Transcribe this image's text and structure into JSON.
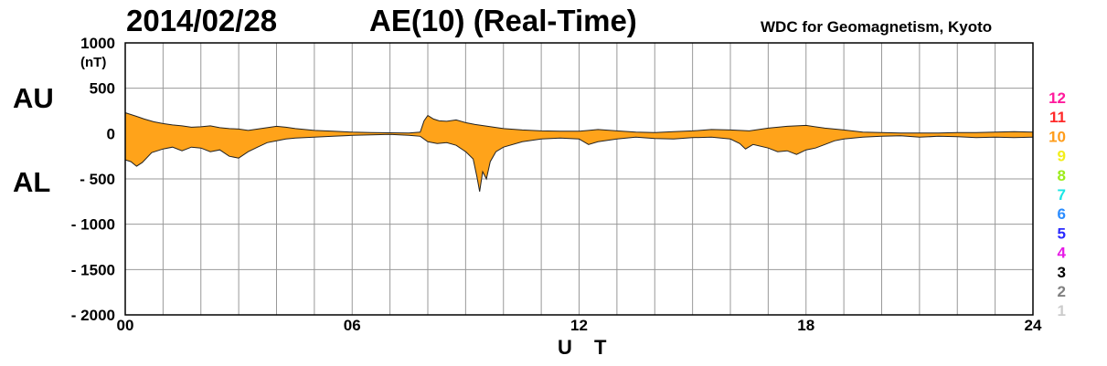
{
  "header": {
    "date": "2014/02/28",
    "title": "AE(10) (Real-Time)",
    "source": "WDC for Geomagnetism, Kyoto"
  },
  "labels": {
    "au": "AU",
    "al": "AL",
    "unit": "(nT)"
  },
  "chart_data": {
    "type": "area",
    "title": "AE(10) (Real-Time)",
    "xlabel": "U T",
    "ylabel": "(nT)",
    "xlim": [
      0,
      24
    ],
    "ylim": [
      -2000,
      1000
    ],
    "x_ticks": [
      "00",
      "06",
      "12",
      "18",
      "24"
    ],
    "x_tick_values": [
      0,
      6,
      12,
      18,
      24
    ],
    "y_ticks": [
      {
        "value": 1000,
        "label": "1000"
      },
      {
        "value": 500,
        "label": "500"
      },
      {
        "value": 0,
        "label": "0"
      },
      {
        "value": -500,
        "label": "- 500"
      },
      {
        "value": -1000,
        "label": "- 1000"
      },
      {
        "value": -1500,
        "label": "- 1500"
      },
      {
        "value": -2000,
        "label": "- 2000"
      }
    ],
    "grid": true,
    "fill_color": "#ffa31a",
    "series": [
      {
        "name": "AU",
        "points": [
          [
            0,
            230
          ],
          [
            0.15,
            210
          ],
          [
            0.3,
            190
          ],
          [
            0.5,
            160
          ],
          [
            0.75,
            130
          ],
          [
            1,
            110
          ],
          [
            1.25,
            95
          ],
          [
            1.5,
            85
          ],
          [
            1.75,
            70
          ],
          [
            2,
            75
          ],
          [
            2.25,
            85
          ],
          [
            2.5,
            65
          ],
          [
            2.75,
            55
          ],
          [
            3,
            50
          ],
          [
            3.25,
            35
          ],
          [
            3.5,
            50
          ],
          [
            3.75,
            65
          ],
          [
            4,
            80
          ],
          [
            4.25,
            70
          ],
          [
            4.5,
            55
          ],
          [
            4.75,
            45
          ],
          [
            5,
            35
          ],
          [
            5.5,
            25
          ],
          [
            6,
            15
          ],
          [
            6.5,
            10
          ],
          [
            7,
            8
          ],
          [
            7.5,
            5
          ],
          [
            7.8,
            15
          ],
          [
            7.9,
            140
          ],
          [
            8.0,
            200
          ],
          [
            8.15,
            160
          ],
          [
            8.3,
            140
          ],
          [
            8.5,
            135
          ],
          [
            8.75,
            150
          ],
          [
            9,
            120
          ],
          [
            9.25,
            100
          ],
          [
            9.5,
            85
          ],
          [
            9.75,
            70
          ],
          [
            10,
            55
          ],
          [
            10.5,
            40
          ],
          [
            11,
            30
          ],
          [
            11.5,
            25
          ],
          [
            12,
            25
          ],
          [
            12.25,
            35
          ],
          [
            12.5,
            45
          ],
          [
            13,
            30
          ],
          [
            13.5,
            15
          ],
          [
            14,
            10
          ],
          [
            14.5,
            20
          ],
          [
            15,
            30
          ],
          [
            15.5,
            45
          ],
          [
            16,
            40
          ],
          [
            16.5,
            30
          ],
          [
            17,
            60
          ],
          [
            17.5,
            80
          ],
          [
            18,
            90
          ],
          [
            18.5,
            60
          ],
          [
            19,
            40
          ],
          [
            19.5,
            15
          ],
          [
            20,
            10
          ],
          [
            20.5,
            5
          ],
          [
            21,
            5
          ],
          [
            21.5,
            5
          ],
          [
            22,
            10
          ],
          [
            22.5,
            10
          ],
          [
            23,
            15
          ],
          [
            23.5,
            20
          ],
          [
            24,
            15
          ]
        ]
      },
      {
        "name": "AL",
        "points": [
          [
            0,
            -290
          ],
          [
            0.15,
            -310
          ],
          [
            0.3,
            -360
          ],
          [
            0.45,
            -320
          ],
          [
            0.7,
            -210
          ],
          [
            1,
            -170
          ],
          [
            1.25,
            -150
          ],
          [
            1.5,
            -190
          ],
          [
            1.75,
            -150
          ],
          [
            2,
            -160
          ],
          [
            2.25,
            -200
          ],
          [
            2.5,
            -180
          ],
          [
            2.75,
            -250
          ],
          [
            3,
            -270
          ],
          [
            3.25,
            -200
          ],
          [
            3.5,
            -150
          ],
          [
            3.75,
            -100
          ],
          [
            4,
            -80
          ],
          [
            4.25,
            -60
          ],
          [
            4.5,
            -50
          ],
          [
            5,
            -40
          ],
          [
            5.5,
            -30
          ],
          [
            6,
            -20
          ],
          [
            6.5,
            -15
          ],
          [
            7,
            -10
          ],
          [
            7.5,
            -20
          ],
          [
            7.8,
            -30
          ],
          [
            8.0,
            -90
          ],
          [
            8.25,
            -110
          ],
          [
            8.5,
            -100
          ],
          [
            8.75,
            -130
          ],
          [
            9,
            -200
          ],
          [
            9.2,
            -280
          ],
          [
            9.3,
            -480
          ],
          [
            9.37,
            -640
          ],
          [
            9.45,
            -420
          ],
          [
            9.55,
            -500
          ],
          [
            9.65,
            -310
          ],
          [
            9.8,
            -200
          ],
          [
            10,
            -150
          ],
          [
            10.5,
            -90
          ],
          [
            11,
            -60
          ],
          [
            11.5,
            -50
          ],
          [
            12,
            -60
          ],
          [
            12.25,
            -120
          ],
          [
            12.5,
            -90
          ],
          [
            13,
            -60
          ],
          [
            13.5,
            -40
          ],
          [
            14,
            -55
          ],
          [
            14.5,
            -60
          ],
          [
            15,
            -45
          ],
          [
            15.5,
            -40
          ],
          [
            16,
            -60
          ],
          [
            16.25,
            -110
          ],
          [
            16.4,
            -170
          ],
          [
            16.6,
            -120
          ],
          [
            17,
            -160
          ],
          [
            17.25,
            -200
          ],
          [
            17.5,
            -190
          ],
          [
            17.75,
            -230
          ],
          [
            18,
            -180
          ],
          [
            18.25,
            -160
          ],
          [
            18.5,
            -120
          ],
          [
            18.75,
            -80
          ],
          [
            19,
            -60
          ],
          [
            19.5,
            -40
          ],
          [
            20,
            -30
          ],
          [
            20.5,
            -25
          ],
          [
            21,
            -40
          ],
          [
            21.5,
            -30
          ],
          [
            22,
            -35
          ],
          [
            22.5,
            -45
          ],
          [
            23,
            -40
          ],
          [
            23.5,
            -45
          ],
          [
            24,
            -40
          ]
        ]
      }
    ],
    "level_scale": [
      {
        "label": "12",
        "color": "#ff1a9c"
      },
      {
        "label": "11",
        "color": "#ff2a2a"
      },
      {
        "label": "10",
        "color": "#ff9c1a"
      },
      {
        "label": "9",
        "color": "#f2ee1a"
      },
      {
        "label": "8",
        "color": "#9cec1a"
      },
      {
        "label": "7",
        "color": "#1ae6e6"
      },
      {
        "label": "6",
        "color": "#2a8cff"
      },
      {
        "label": "5",
        "color": "#2a2aff"
      },
      {
        "label": "4",
        "color": "#e61ae6"
      },
      {
        "label": "3",
        "color": "#000000"
      },
      {
        "label": "2",
        "color": "#808080"
      },
      {
        "label": "1",
        "color": "#cccccc"
      }
    ]
  }
}
